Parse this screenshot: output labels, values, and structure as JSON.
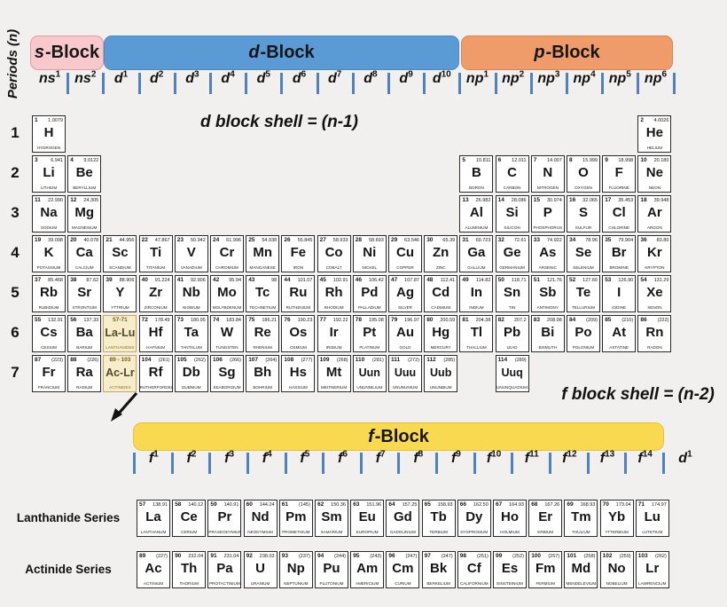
{
  "colors": {
    "bg": "#f1f0ee",
    "s_block": "#f8c8cd",
    "s_border": "#e09aa6",
    "d_block": "#5b9bd5",
    "d_border": "#4c8ac2",
    "p_block": "#f09c6a",
    "p_border": "#dd8350",
    "f_block": "#f8d94f",
    "f_border": "#e6c23c",
    "tick": "#4f81bd",
    "series_bg": "#f7edca",
    "series_border": "#bfa95e"
  },
  "periods_label": "Periods (n)",
  "blocks": {
    "s": {
      "it": "s",
      "rest": "-Block"
    },
    "d": {
      "it": "d",
      "rest": "-Block"
    },
    "p": {
      "it": "p",
      "rest": "-Block"
    },
    "f": {
      "it": "f",
      "rest": "-Block"
    }
  },
  "annotations": {
    "d_shell": "d block shell = (n-1)",
    "f_shell": "f block shell = (n-2)"
  },
  "series_labels": {
    "lanthanide": "Lanthanide Series",
    "actinide": "Actinide Series"
  },
  "period_numbers": [
    "1",
    "2",
    "3",
    "4",
    "5",
    "6",
    "7"
  ],
  "orbital_labels": [
    {
      "b": "ns",
      "s": "1"
    },
    {
      "b": "ns",
      "s": "2"
    },
    {
      "b": "d",
      "s": "1"
    },
    {
      "b": "d",
      "s": "2"
    },
    {
      "b": "d",
      "s": "3"
    },
    {
      "b": "d",
      "s": "4"
    },
    {
      "b": "d",
      "s": "5"
    },
    {
      "b": "d",
      "s": "6"
    },
    {
      "b": "d",
      "s": "7"
    },
    {
      "b": "d",
      "s": "8"
    },
    {
      "b": "d",
      "s": "9"
    },
    {
      "b": "d",
      "s": "10"
    },
    {
      "b": "np",
      "s": "1"
    },
    {
      "b": "np",
      "s": "2"
    },
    {
      "b": "np",
      "s": "3"
    },
    {
      "b": "np",
      "s": "4"
    },
    {
      "b": "np",
      "s": "5"
    },
    {
      "b": "np",
      "s": "6"
    }
  ],
  "f_labels": [
    {
      "b": "f",
      "s": "1"
    },
    {
      "b": "f",
      "s": "2"
    },
    {
      "b": "f",
      "s": "3"
    },
    {
      "b": "f",
      "s": "4"
    },
    {
      "b": "f",
      "s": "5"
    },
    {
      "b": "f",
      "s": "6"
    },
    {
      "b": "f",
      "s": "7"
    },
    {
      "b": "f",
      "s": "8"
    },
    {
      "b": "f",
      "s": "9"
    },
    {
      "b": "f",
      "s": "10"
    },
    {
      "b": "f",
      "s": "11"
    },
    {
      "b": "f",
      "s": "12"
    },
    {
      "b": "f",
      "s": "13"
    },
    {
      "b": "f",
      "s": "14"
    }
  ],
  "f_trailing": {
    "b": "d",
    "s": "1"
  },
  "elements": [
    {
      "n": "1",
      "m": "1.0079",
      "s": "H",
      "nm": "HYDROGEN",
      "p": 1,
      "c": 1
    },
    {
      "n": "2",
      "m": "4.0026",
      "s": "He",
      "nm": "HELIUM",
      "p": 1,
      "c": 18
    },
    {
      "n": "3",
      "m": "6.941",
      "s": "Li",
      "nm": "LITHIUM",
      "p": 2,
      "c": 1
    },
    {
      "n": "4",
      "m": "9.0122",
      "s": "Be",
      "nm": "BERYLLIUM",
      "p": 2,
      "c": 2
    },
    {
      "n": "5",
      "m": "10.811",
      "s": "B",
      "nm": "BORON",
      "p": 2,
      "c": 13
    },
    {
      "n": "6",
      "m": "12.011",
      "s": "C",
      "nm": "CARBON",
      "p": 2,
      "c": 14
    },
    {
      "n": "7",
      "m": "14.007",
      "s": "N",
      "nm": "NITROGEN",
      "p": 2,
      "c": 15
    },
    {
      "n": "8",
      "m": "15.999",
      "s": "O",
      "nm": "OXYGEN",
      "p": 2,
      "c": 16
    },
    {
      "n": "9",
      "m": "18.998",
      "s": "F",
      "nm": "FLUORINE",
      "p": 2,
      "c": 17
    },
    {
      "n": "10",
      "m": "20.180",
      "s": "Ne",
      "nm": "NEON",
      "p": 2,
      "c": 18
    },
    {
      "n": "11",
      "m": "22.990",
      "s": "Na",
      "nm": "SODIUM",
      "p": 3,
      "c": 1
    },
    {
      "n": "12",
      "m": "24.305",
      "s": "Mg",
      "nm": "MAGNESIUM",
      "p": 3,
      "c": 2
    },
    {
      "n": "13",
      "m": "26.982",
      "s": "Al",
      "nm": "ALUMINIUM",
      "p": 3,
      "c": 13
    },
    {
      "n": "14",
      "m": "28.086",
      "s": "Si",
      "nm": "SILICON",
      "p": 3,
      "c": 14
    },
    {
      "n": "15",
      "m": "30.974",
      "s": "P",
      "nm": "PHOSPHORUS",
      "p": 3,
      "c": 15
    },
    {
      "n": "16",
      "m": "32.065",
      "s": "S",
      "nm": "SULFUR",
      "p": 3,
      "c": 16
    },
    {
      "n": "17",
      "m": "35.453",
      "s": "Cl",
      "nm": "CHLORINE",
      "p": 3,
      "c": 17
    },
    {
      "n": "18",
      "m": "39.948",
      "s": "Ar",
      "nm": "ARGON",
      "p": 3,
      "c": 18
    },
    {
      "n": "19",
      "m": "39.098",
      "s": "K",
      "nm": "POTASSIUM",
      "p": 4,
      "c": 1
    },
    {
      "n": "20",
      "m": "40.078",
      "s": "Ca",
      "nm": "CALCIUM",
      "p": 4,
      "c": 2
    },
    {
      "n": "21",
      "m": "44.956",
      "s": "Sc",
      "nm": "SCANDIUM",
      "p": 4,
      "c": 3
    },
    {
      "n": "22",
      "m": "47.867",
      "s": "Ti",
      "nm": "TITANIUM",
      "p": 4,
      "c": 4
    },
    {
      "n": "23",
      "m": "50.942",
      "s": "V",
      "nm": "VANADIUM",
      "p": 4,
      "c": 5
    },
    {
      "n": "24",
      "m": "51.996",
      "s": "Cr",
      "nm": "CHROMIUM",
      "p": 4,
      "c": 6
    },
    {
      "n": "25",
      "m": "54.938",
      "s": "Mn",
      "nm": "MANGANESE",
      "p": 4,
      "c": 7
    },
    {
      "n": "26",
      "m": "55.845",
      "s": "Fe",
      "nm": "IRON",
      "p": 4,
      "c": 8
    },
    {
      "n": "27",
      "m": "58.933",
      "s": "Co",
      "nm": "COBALT",
      "p": 4,
      "c": 9
    },
    {
      "n": "28",
      "m": "58.693",
      "s": "Ni",
      "nm": "NICKEL",
      "p": 4,
      "c": 10
    },
    {
      "n": "29",
      "m": "63.546",
      "s": "Cu",
      "nm": "COPPER",
      "p": 4,
      "c": 11
    },
    {
      "n": "30",
      "m": "65.39",
      "s": "Zn",
      "nm": "ZINC",
      "p": 4,
      "c": 12
    },
    {
      "n": "31",
      "m": "69.723",
      "s": "Ga",
      "nm": "GALLIUM",
      "p": 4,
      "c": 13
    },
    {
      "n": "32",
      "m": "72.61",
      "s": "Ge",
      "nm": "GERMANIUM",
      "p": 4,
      "c": 14
    },
    {
      "n": "33",
      "m": "74.922",
      "s": "As",
      "nm": "ARSENIC",
      "p": 4,
      "c": 15
    },
    {
      "n": "34",
      "m": "78.96",
      "s": "Se",
      "nm": "SELENIUM",
      "p": 4,
      "c": 16
    },
    {
      "n": "35",
      "m": "79.904",
      "s": "Br",
      "nm": "BROMINE",
      "p": 4,
      "c": 17
    },
    {
      "n": "36",
      "m": "83.80",
      "s": "Kr",
      "nm": "KRYPTON",
      "p": 4,
      "c": 18
    },
    {
      "n": "37",
      "m": "85.468",
      "s": "Rb",
      "nm": "RUBIDIUM",
      "p": 5,
      "c": 1
    },
    {
      "n": "38",
      "m": "87.62",
      "s": "Sr",
      "nm": "STRONTIUM",
      "p": 5,
      "c": 2
    },
    {
      "n": "39",
      "m": "88.906",
      "s": "Y",
      "nm": "YTTRIUM",
      "p": 5,
      "c": 3
    },
    {
      "n": "40",
      "m": "91.224",
      "s": "Zr",
      "nm": "ZIRCONIUM",
      "p": 5,
      "c": 4
    },
    {
      "n": "41",
      "m": "92.906",
      "s": "Nb",
      "nm": "NIOBIUM",
      "p": 5,
      "c": 5
    },
    {
      "n": "42",
      "m": "95.94",
      "s": "Mo",
      "nm": "MOLYBDENUM",
      "p": 5,
      "c": 6
    },
    {
      "n": "43",
      "m": "98",
      "s": "Tc",
      "nm": "TECHNETIUM",
      "p": 5,
      "c": 7
    },
    {
      "n": "44",
      "m": "101.07",
      "s": "Ru",
      "nm": "RUTHENIUM",
      "p": 5,
      "c": 8
    },
    {
      "n": "45",
      "m": "102.91",
      "s": "Rh",
      "nm": "RHODIUM",
      "p": 5,
      "c": 9
    },
    {
      "n": "46",
      "m": "106.42",
      "s": "Pd",
      "nm": "PALLADIUM",
      "p": 5,
      "c": 10
    },
    {
      "n": "47",
      "m": "107.87",
      "s": "Ag",
      "nm": "SILVER",
      "p": 5,
      "c": 11
    },
    {
      "n": "48",
      "m": "112.41",
      "s": "Cd",
      "nm": "CADMIUM",
      "p": 5,
      "c": 12
    },
    {
      "n": "49",
      "m": "114.82",
      "s": "In",
      "nm": "INDIUM",
      "p": 5,
      "c": 13
    },
    {
      "n": "50",
      "m": "118.71",
      "s": "Sn",
      "nm": "TIN",
      "p": 5,
      "c": 14
    },
    {
      "n": "51",
      "m": "121.76",
      "s": "Sb",
      "nm": "ANTIMONY",
      "p": 5,
      "c": 15
    },
    {
      "n": "52",
      "m": "127.60",
      "s": "Te",
      "nm": "TELLURIUM",
      "p": 5,
      "c": 16
    },
    {
      "n": "53",
      "m": "126.90",
      "s": "I",
      "nm": "IODINE",
      "p": 5,
      "c": 17
    },
    {
      "n": "54",
      "m": "131.29",
      "s": "Xe",
      "nm": "XENON",
      "p": 5,
      "c": 18
    },
    {
      "n": "55",
      "m": "132.91",
      "s": "Cs",
      "nm": "CESIUM",
      "p": 6,
      "c": 1
    },
    {
      "n": "56",
      "m": "137.33",
      "s": "Ba",
      "nm": "BARIUM",
      "p": 6,
      "c": 2
    },
    {
      "n": "57-71",
      "m": "",
      "s": "La-Lu",
      "nm": "LANTHANIDES",
      "p": 6,
      "c": 3,
      "ph": true
    },
    {
      "n": "72",
      "m": "178.49",
      "s": "Hf",
      "nm": "HAFNIUM",
      "p": 6,
      "c": 4
    },
    {
      "n": "73",
      "m": "180.95",
      "s": "Ta",
      "nm": "TANTALUM",
      "p": 6,
      "c": 5
    },
    {
      "n": "74",
      "m": "183.84",
      "s": "W",
      "nm": "TUNGSTEN",
      "p": 6,
      "c": 6
    },
    {
      "n": "75",
      "m": "186.21",
      "s": "Re",
      "nm": "RHENIUM",
      "p": 6,
      "c": 7
    },
    {
      "n": "76",
      "m": "190.23",
      "s": "Os",
      "nm": "OSMIUM",
      "p": 6,
      "c": 8
    },
    {
      "n": "77",
      "m": "192.22",
      "s": "Ir",
      "nm": "IRIDIUM",
      "p": 6,
      "c": 9
    },
    {
      "n": "78",
      "m": "195.08",
      "s": "Pt",
      "nm": "PLATINUM",
      "p": 6,
      "c": 10
    },
    {
      "n": "79",
      "m": "196.97",
      "s": "Au",
      "nm": "GOLD",
      "p": 6,
      "c": 11
    },
    {
      "n": "80",
      "m": "200.59",
      "s": "Hg",
      "nm": "MERCURY",
      "p": 6,
      "c": 12
    },
    {
      "n": "81",
      "m": "204.38",
      "s": "Tl",
      "nm": "THALLIUM",
      "p": 6,
      "c": 13
    },
    {
      "n": "82",
      "m": "207.2",
      "s": "Pb",
      "nm": "LEAD",
      "p": 6,
      "c": 14
    },
    {
      "n": "83",
      "m": "208.98",
      "s": "Bi",
      "nm": "BISMUTH",
      "p": 6,
      "c": 15
    },
    {
      "n": "84",
      "m": "(209)",
      "s": "Po",
      "nm": "POLONIUM",
      "p": 6,
      "c": 16
    },
    {
      "n": "85",
      "m": "(210)",
      "s": "At",
      "nm": "ASTATINE",
      "p": 6,
      "c": 17
    },
    {
      "n": "86",
      "m": "(222)",
      "s": "Rn",
      "nm": "RADON",
      "p": 6,
      "c": 18
    },
    {
      "n": "87",
      "m": "(223)",
      "s": "Fr",
      "nm": "FRANCIUM",
      "p": 7,
      "c": 1
    },
    {
      "n": "88",
      "m": "(226)",
      "s": "Ra",
      "nm": "RADIUM",
      "p": 7,
      "c": 2
    },
    {
      "n": "89 - 103",
      "m": "",
      "s": "Ac-Lr",
      "nm": "ACTINIDES",
      "p": 7,
      "c": 3,
      "ph": true
    },
    {
      "n": "104",
      "m": "(261)",
      "s": "Rf",
      "nm": "RUTHERFORDIUM",
      "p": 7,
      "c": 4
    },
    {
      "n": "105",
      "m": "(262)",
      "s": "Db",
      "nm": "DUBNIUM",
      "p": 7,
      "c": 5
    },
    {
      "n": "106",
      "m": "(266)",
      "s": "Sg",
      "nm": "SEABORGIUM",
      "p": 7,
      "c": 6
    },
    {
      "n": "107",
      "m": "(264)",
      "s": "Bh",
      "nm": "BOHRIUM",
      "p": 7,
      "c": 7
    },
    {
      "n": "108",
      "m": "(277)",
      "s": "Hs",
      "nm": "HASSIUM",
      "p": 7,
      "c": 8
    },
    {
      "n": "109",
      "m": "(268)",
      "s": "Mt",
      "nm": "MEITNERIUM",
      "p": 7,
      "c": 9
    },
    {
      "n": "110",
      "m": "(281)",
      "s": "Uun",
      "nm": "UNUNNILIUM",
      "p": 7,
      "c": 10
    },
    {
      "n": "111",
      "m": "(272)",
      "s": "Uuu",
      "nm": "UNUNUNIUM",
      "p": 7,
      "c": 11
    },
    {
      "n": "112",
      "m": "(285)",
      "s": "Uub",
      "nm": "UNUNBIUM",
      "p": 7,
      "c": 12
    },
    {
      "n": "114",
      "m": "(289)",
      "s": "Uuq",
      "nm": "UNUNQUADIUM",
      "p": 7,
      "c": 14
    }
  ],
  "lanthanides": [
    {
      "n": "57",
      "m": "138.91",
      "s": "La",
      "nm": "LANTHANUM"
    },
    {
      "n": "58",
      "m": "140.12",
      "s": "Ce",
      "nm": "CERIUM"
    },
    {
      "n": "59",
      "m": "140.91",
      "s": "Pr",
      "nm": "PRASEODYMIUM"
    },
    {
      "n": "60",
      "m": "144.24",
      "s": "Nd",
      "nm": "NEODYMIUM"
    },
    {
      "n": "61",
      "m": "(145)",
      "s": "Pm",
      "nm": "PROMETHIUM"
    },
    {
      "n": "62",
      "m": "150.36",
      "s": "Sm",
      "nm": "SAMARIUM"
    },
    {
      "n": "63",
      "m": "151.96",
      "s": "Eu",
      "nm": "EUROPIUM"
    },
    {
      "n": "64",
      "m": "157.25",
      "s": "Gd",
      "nm": "GADOLINIUM"
    },
    {
      "n": "65",
      "m": "158.93",
      "s": "Tb",
      "nm": "TERBIUM"
    },
    {
      "n": "66",
      "m": "162.50",
      "s": "Dy",
      "nm": "DYSPROSIUM"
    },
    {
      "n": "67",
      "m": "164.93",
      "s": "Ho",
      "nm": "HOLMIUM"
    },
    {
      "n": "68",
      "m": "167.26",
      "s": "Er",
      "nm": "ERBIUM"
    },
    {
      "n": "69",
      "m": "168.93",
      "s": "Tm",
      "nm": "THULIUM"
    },
    {
      "n": "70",
      "m": "173.04",
      "s": "Yb",
      "nm": "YTTERBIUM"
    },
    {
      "n": "71",
      "m": "174.97",
      "s": "Lu",
      "nm": "LUTETIUM"
    }
  ],
  "actinides": [
    {
      "n": "89",
      "m": "(227)",
      "s": "Ac",
      "nm": "ACTINIUM"
    },
    {
      "n": "90",
      "m": "232.04",
      "s": "Th",
      "nm": "THORIUM"
    },
    {
      "n": "91",
      "m": "231.04",
      "s": "Pa",
      "nm": "PROTACTINIUM"
    },
    {
      "n": "92",
      "m": "238.03",
      "s": "U",
      "nm": "URANIUM"
    },
    {
      "n": "93",
      "m": "(237)",
      "s": "Np",
      "nm": "NEPTUNIUM"
    },
    {
      "n": "94",
      "m": "(244)",
      "s": "Pu",
      "nm": "PLUTONIUM"
    },
    {
      "n": "95",
      "m": "(243)",
      "s": "Am",
      "nm": "AMERICIUM"
    },
    {
      "n": "96",
      "m": "(247)",
      "s": "Cm",
      "nm": "CURIUM"
    },
    {
      "n": "97",
      "m": "(247)",
      "s": "Bk",
      "nm": "BERKELIUM"
    },
    {
      "n": "98",
      "m": "(251)",
      "s": "Cf",
      "nm": "CALIFORNIUM"
    },
    {
      "n": "99",
      "m": "(252)",
      "s": "Es",
      "nm": "EINSTEINIUM"
    },
    {
      "n": "100",
      "m": "(257)",
      "s": "Fm",
      "nm": "FERMIUM"
    },
    {
      "n": "101",
      "m": "(258)",
      "s": "Md",
      "nm": "MENDELEVIUM"
    },
    {
      "n": "102",
      "m": "(259)",
      "s": "No",
      "nm": "NOBELIUM"
    },
    {
      "n": "103",
      "m": "(262)",
      "s": "Lr",
      "nm": "LAWRENCIUM"
    }
  ]
}
